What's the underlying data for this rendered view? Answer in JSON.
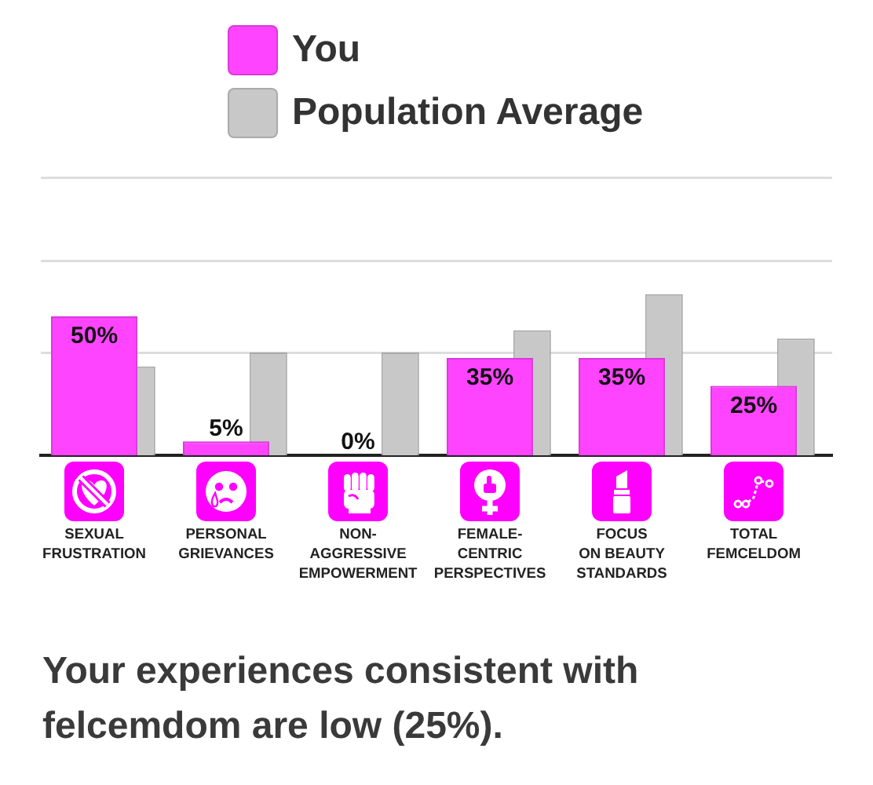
{
  "chart_data": {
    "type": "bar",
    "categories": [
      "SEXUAL\nFRUSTRATION",
      "PERSONAL\nGRIEVANCES",
      "NON-\nAGGRESSIVE\nEMPOWERMENT",
      "FEMALE-\nCENTRIC\nPERSPECTIVES",
      "FOCUS\nON BEAUTY\nSTANDARDS",
      "TOTAL\nFEMCELDOM"
    ],
    "series": [
      {
        "name": "You",
        "color": "#ff44ff",
        "values": [
          50,
          5,
          0,
          35,
          35,
          25
        ],
        "value_labels": [
          "50%",
          "5%",
          "0%",
          "35%",
          "35%",
          "25%"
        ]
      },
      {
        "name": "Population Average",
        "color": "#c8c8c8",
        "values": [
          32,
          37,
          37,
          45,
          58,
          42
        ]
      }
    ],
    "ylim": [
      0,
      100
    ],
    "yticks": [
      {
        "value": 37,
        "label": null
      },
      {
        "value": 70,
        "label": null
      },
      {
        "value": 100,
        "label": null
      }
    ],
    "grid": "y",
    "legend": "top",
    "tick_labels": "x",
    "annotations": [
      "Your experiences consistent with felcemdom are low (25%)."
    ]
  }
}
